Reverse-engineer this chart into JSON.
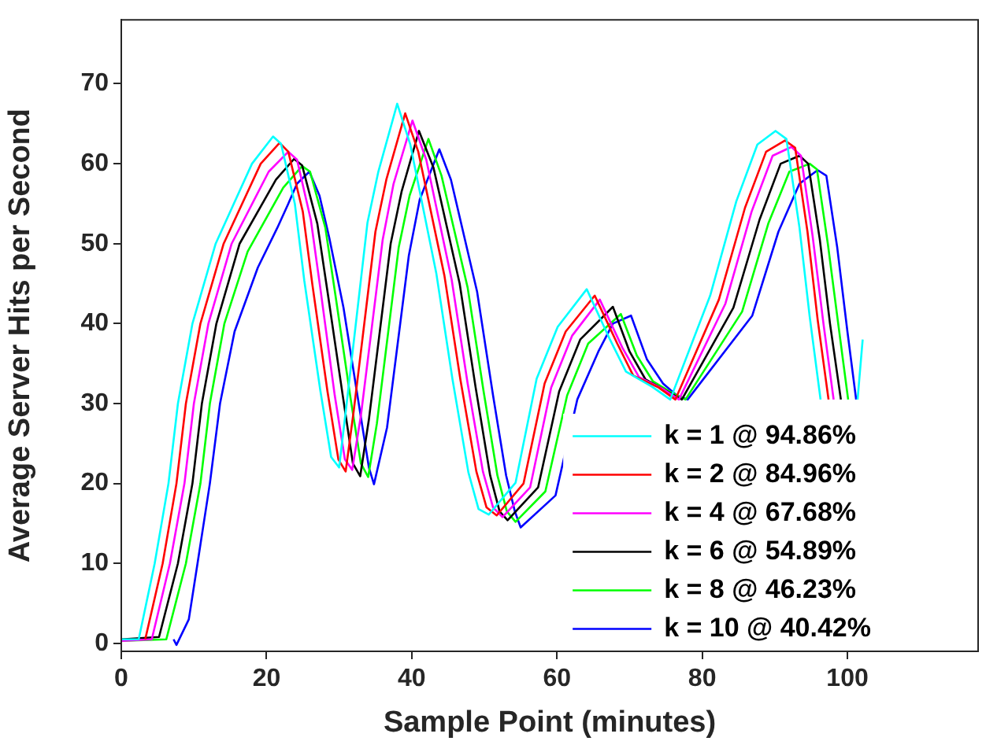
{
  "chart_data": {
    "type": "line",
    "xlabel": "Sample Point (minutes)",
    "ylabel": "Average Server Hits per Second",
    "xlim": [
      0,
      118
    ],
    "xticks": [
      0,
      20,
      40,
      60,
      80,
      100
    ],
    "ylim": [
      -1,
      78
    ],
    "yticks": [
      0,
      10,
      20,
      30,
      40,
      50,
      60,
      70
    ],
    "grid": false,
    "legend": "bottom right",
    "marker": "none",
    "line_style": "solid",
    "series": [
      {
        "name": "k = 1 @ 94.86%",
        "color": "#00ffff",
        "x": [
          0,
          2.4,
          4.6,
          6.5,
          7.8,
          9.8,
          13,
          18,
          20.9,
          22,
          23.9,
          25.2,
          27.4,
          28.9,
          30,
          31,
          33.9,
          35.4,
          38,
          39.8,
          43.4,
          45.6,
          47.8,
          49.2,
          50.6,
          54.3,
          57.2,
          60.1,
          64.1,
          67.3,
          69.5,
          73.1,
          75.6,
          81.1,
          84.7,
          87.6,
          90.1,
          91.6,
          93.4,
          94.8,
          96.3,
          99,
          101.4,
          102.1
        ],
        "values": [
          0.5,
          0.5,
          10,
          20,
          30,
          40,
          50,
          60,
          63.4,
          62.5,
          55,
          45.4,
          31.7,
          23.3,
          22,
          29.7,
          52.6,
          59,
          67.5,
          62.4,
          46.2,
          33.1,
          21.4,
          16.8,
          16.1,
          20.1,
          33.1,
          39.6,
          44.3,
          38,
          34,
          32.1,
          30.5,
          43.5,
          55.3,
          62.4,
          64.1,
          63.1,
          52,
          40.9,
          30.5,
          null,
          30.5,
          38
        ]
      },
      {
        "name": "k = 2 @ 84.96%",
        "color": "#ff0000",
        "x": [
          3.3,
          5.7,
          7.6,
          8.9,
          10.9,
          14.1,
          19.2,
          21.8,
          23,
          25,
          26.3,
          28.4,
          29.9,
          30.9,
          32,
          35,
          36.5,
          39.1,
          40.9,
          44.5,
          46.7,
          48.9,
          50.3,
          51.7,
          55.4,
          58.3,
          61.2,
          65.2,
          68.3,
          70.5,
          74,
          76.3,
          82.3,
          85.9,
          88.8,
          91.4,
          92.8,
          94.5,
          95.9,
          97.4
        ],
        "values": [
          0.5,
          10,
          20,
          30,
          40,
          50,
          60,
          62.6,
          61.5,
          54,
          45,
          31.5,
          23,
          21.5,
          29,
          51.5,
          58,
          66.3,
          61.5,
          46,
          33,
          21.5,
          17,
          16,
          20,
          32.5,
          39,
          43.5,
          37.5,
          33.5,
          32,
          30.5,
          43,
          54.5,
          61.5,
          62.9,
          62,
          51.5,
          40.5,
          30.5
        ]
      },
      {
        "name": "k = 4 @ 67.68%",
        "color": "#ff00ff",
        "x": [
          0,
          4.2,
          6.7,
          8.7,
          10,
          12,
          15.2,
          20.3,
          23,
          24.2,
          26.1,
          27.4,
          29.4,
          30.8,
          31.8,
          33,
          36,
          37.5,
          40.1,
          42,
          45.5,
          47.7,
          49.8,
          51.2,
          52.5,
          56.3,
          59.2,
          62.1,
          65.9,
          69,
          71.3,
          74.6,
          76.8,
          83.2,
          86.8,
          89.7,
          92.3,
          93.6,
          95.2,
          96.7,
          98.1
        ],
        "values": [
          0.3,
          0.5,
          10,
          20,
          30,
          40,
          50,
          59,
          61.5,
          60.5,
          53,
          44.5,
          31,
          23,
          21.7,
          28.5,
          50.5,
          57.5,
          65.4,
          60.5,
          45.5,
          32.5,
          21.5,
          17,
          15.8,
          19.5,
          32,
          38.5,
          43,
          37,
          33.3,
          31.8,
          30.5,
          42.5,
          54,
          61,
          62.1,
          61,
          51,
          40,
          30.5
        ]
      },
      {
        "name": "k = 6 @ 54.89%",
        "color": "#000000",
        "x": [
          0,
          5.2,
          7.8,
          9.8,
          11.1,
          13.1,
          16.3,
          21.3,
          23.8,
          24.9,
          27,
          28.4,
          30.5,
          31.9,
          32.9,
          34.1,
          37.1,
          38.6,
          41,
          43,
          46.6,
          48.8,
          50.8,
          52.1,
          53.2,
          57.4,
          60.3,
          63.2,
          67.7,
          70,
          72.2,
          75.2,
          77.2,
          84.3,
          87.9,
          90.8,
          93.4,
          94.6,
          96.2,
          97.6,
          99.1
        ],
        "values": [
          0.5,
          0.8,
          10,
          20,
          30,
          40,
          50,
          58,
          60.6,
          59.8,
          52.5,
          44,
          31,
          22.5,
          20.9,
          28,
          50,
          56.5,
          64.1,
          59.5,
          45,
          32,
          21,
          16.5,
          15.4,
          19.5,
          31.5,
          38,
          42.1,
          36.5,
          33,
          31.5,
          30.5,
          42,
          53,
          60,
          61,
          60,
          50.5,
          40,
          30.5
        ]
      },
      {
        "name": "k = 8 @ 46.23%",
        "color": "#00ff00",
        "x": [
          0,
          6.2,
          8.9,
          10.9,
          12.2,
          14.2,
          17.4,
          22.3,
          24.9,
          26,
          28.1,
          29.5,
          31.6,
          33,
          34,
          35.2,
          38.2,
          39.7,
          42.3,
          44.1,
          47.7,
          49.9,
          51.8,
          53.1,
          54.3,
          58.4,
          61.4,
          64.3,
          68.8,
          71,
          73.2,
          75.9,
          77.7,
          85.5,
          89.1,
          92,
          94.8,
          95.8,
          97.3,
          98.8,
          100.1
        ],
        "values": [
          0.3,
          0.5,
          10,
          20,
          30,
          40,
          49,
          57,
          59.7,
          59,
          52,
          43.5,
          30.5,
          22.5,
          20.8,
          27.5,
          49.5,
          56,
          63.1,
          58.5,
          44.5,
          31.5,
          21,
          16.5,
          15.2,
          19,
          31,
          37.5,
          41.2,
          36,
          32.8,
          31.3,
          30.5,
          41.5,
          52.5,
          59,
          60,
          59.3,
          50,
          39.5,
          30.5
        ]
      },
      {
        "name": "k = 10 @ 40.42%",
        "color": "#0000ff",
        "x": [
          7.2,
          7.6,
          9.3,
          10.5,
          12.2,
          13.6,
          15.6,
          18.8,
          21.5,
          23,
          24.2,
          25.9,
          27.3,
          28.7,
          30.6,
          32.7,
          34.1,
          34.8,
          36.6,
          39.6,
          41.1,
          43.8,
          45.4,
          49,
          51.2,
          53,
          54.2,
          55,
          59.8,
          62.8,
          65.7,
          67.7,
          70.2,
          72.4,
          74.6,
          76.5,
          78,
          86.9,
          90.5,
          93.4,
          95.9,
          97.1,
          98.6,
          100,
          101.2
        ],
        "values": [
          0.5,
          -0.2,
          3,
          10,
          20,
          30,
          39,
          47,
          52,
          55,
          57.5,
          59,
          56,
          50.5,
          42,
          30,
          22,
          19.9,
          27,
          48.5,
          55.5,
          61.8,
          58,
          44,
          31,
          21,
          16.5,
          14.5,
          18.5,
          30.5,
          36.5,
          40,
          41,
          35.5,
          32.5,
          31,
          30.5,
          41,
          51.5,
          57.5,
          59.2,
          58.5,
          49.5,
          39,
          30.5
        ]
      }
    ]
  }
}
